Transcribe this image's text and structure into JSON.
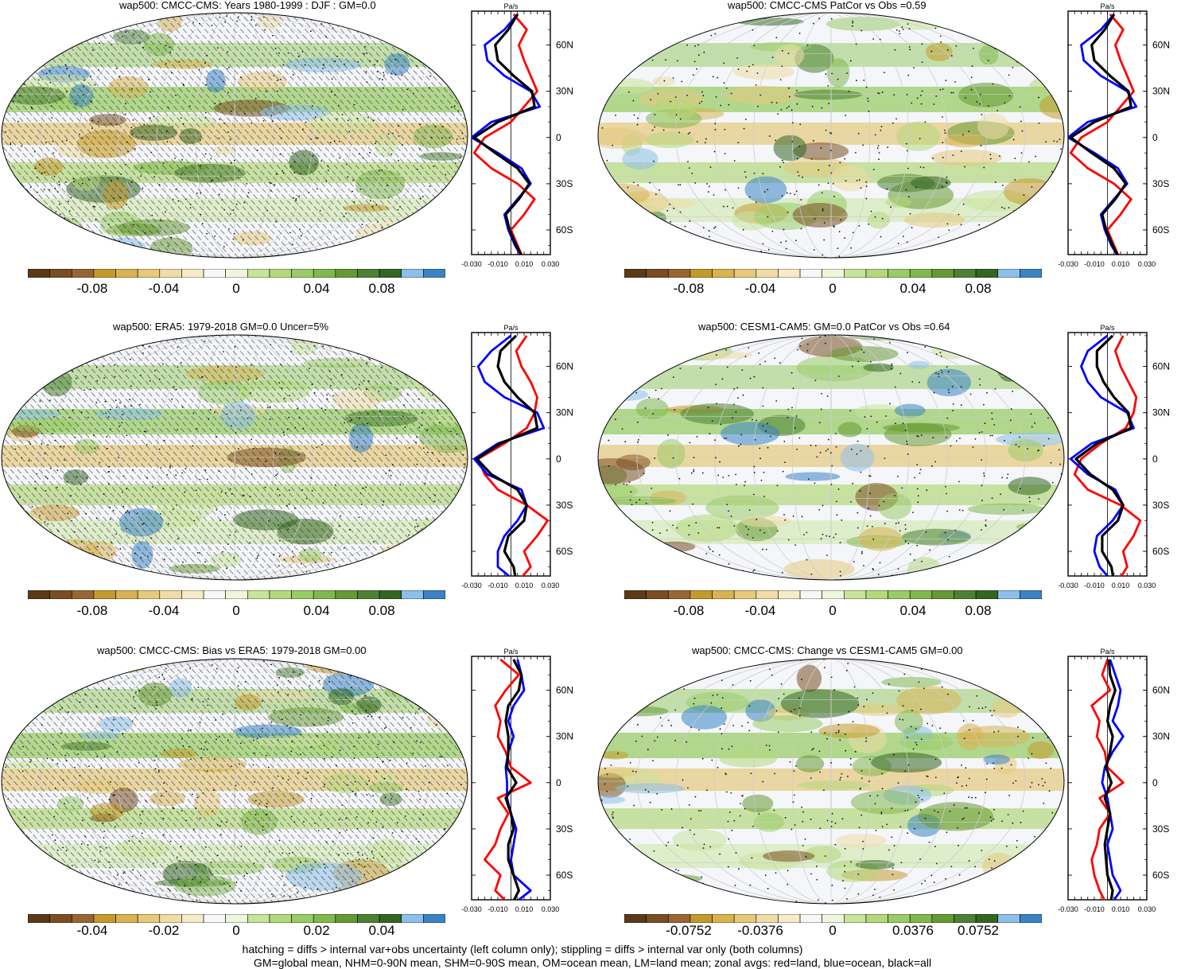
{
  "figure": {
    "footer_line1": "hatching = diffs > internal var+obs uncertainty (left column only); stippling = diffs > internal var only (both columns)",
    "footer_line2": "GM=global mean, NHM=0-90N mean, SHM=0-90S mean, OM=ocean mean, LM=land mean; zonal avgs: red=land, blue=ocean, black=all"
  },
  "colors": {
    "palette": [
      "#5c3a17",
      "#7a4e22",
      "#996633",
      "#c49a2e",
      "#d9b352",
      "#e6c97a",
      "#efdca6",
      "#f5ebc9",
      "#f7f7f7",
      "#eef6dc",
      "#c8e39a",
      "#b3d97a",
      "#99cc66",
      "#80b84d",
      "#669933",
      "#4d8033",
      "#336622",
      "#8cc0ea",
      "#3b83c4"
    ],
    "land_line": "#ff0000",
    "ocean_line": "#0000ff",
    "all_line": "#000000"
  },
  "zonal_axis": {
    "unit_label": "Pa/s",
    "tick_labels_x": [
      "-0.030",
      "-0.010",
      "0.010",
      "0.030"
    ],
    "lat_labels": [
      "60N",
      "30N",
      "0",
      "30S",
      "60S"
    ]
  },
  "panels": [
    {
      "title": "wap500: CMCC-CMS: Years 1980-1999 : DJF : GM=0.0",
      "colorbar_labels": [
        "-0.08",
        "-0.04",
        "0",
        "0.04",
        "0.08"
      ],
      "hatched": true
    },
    {
      "title": "wap500: CMCC-CMS PatCor vs Obs =0.59",
      "colorbar_labels": [
        "-0.08",
        "-0.04",
        "0",
        "0.04",
        "0.08"
      ],
      "hatched": false
    },
    {
      "title": "wap500: ERA5: 1979-2018 GM=0.0 Uncer=5%",
      "colorbar_labels": [
        "-0.08",
        "-0.04",
        "0",
        "0.04",
        "0.08"
      ],
      "hatched": true
    },
    {
      "title": "wap500: CESM1-CAM5: GM=0.0 PatCor vs Obs =0.64",
      "colorbar_labels": [
        "-0.08",
        "-0.04",
        "0",
        "0.04",
        "0.08"
      ],
      "hatched": false
    },
    {
      "title": "wap500: CMCC-CMS: Bias vs ERA5: 1979-2018 GM=0.00",
      "colorbar_labels": [
        "-0.04",
        "-0.02",
        "0",
        "0.02",
        "0.04"
      ],
      "hatched": true
    },
    {
      "title": "wap500: CMCC-CMS: Change vs CESM1-CAM5 GM=0.00",
      "colorbar_labels": [
        "-0.0752",
        "-0.0376",
        "0",
        "0.0376",
        "0.0752"
      ],
      "hatched": false
    }
  ],
  "chart_data": [
    {
      "type": "line",
      "title": "wap500: CMCC-CMS: Years 1980-1999 : DJF : GM=0.0",
      "xlabel": "Pa/s",
      "xlim": [
        -0.03,
        0.03
      ],
      "ylim": [
        -75,
        80
      ],
      "y": [
        80,
        70,
        60,
        50,
        40,
        30,
        20,
        10,
        0,
        -10,
        -20,
        -30,
        -40,
        -50,
        -60,
        -70,
        -80
      ],
      "series": [
        {
          "name": "land",
          "color": "red",
          "x": [
            0.002,
            0.012,
            0.006,
            0.01,
            0.015,
            0.02,
            0.01,
            0.0,
            -0.02,
            -0.028,
            -0.015,
            0.005,
            0.018,
            0.01,
            0.0,
            0.005,
            0.01
          ]
        },
        {
          "name": "ocean",
          "color": "blue",
          "x": [
            0.005,
            -0.005,
            -0.02,
            -0.018,
            -0.005,
            0.015,
            0.022,
            -0.015,
            -0.03,
            -0.01,
            0.008,
            0.015,
            0.005,
            -0.005,
            -0.002,
            0.003,
            0.01
          ]
        },
        {
          "name": "all",
          "color": "black",
          "x": [
            0.005,
            -0.002,
            -0.012,
            -0.01,
            0.002,
            0.016,
            0.018,
            -0.01,
            -0.028,
            -0.012,
            0.005,
            0.014,
            0.006,
            -0.004,
            -0.001,
            0.004,
            0.01
          ]
        }
      ]
    },
    {
      "type": "line",
      "title": "wap500: CMCC-CMS PatCor vs Obs =0.59",
      "xlabel": "Pa/s",
      "xlim": [
        -0.03,
        0.03
      ],
      "ylim": [
        -75,
        80
      ],
      "y": [
        80,
        70,
        60,
        50,
        40,
        30,
        20,
        10,
        0,
        -10,
        -20,
        -30,
        -40,
        -50,
        -60,
        -70,
        -80
      ],
      "series": [
        {
          "name": "land",
          "color": "red",
          "x": [
            0.002,
            0.012,
            0.006,
            0.01,
            0.015,
            0.02,
            0.01,
            0.0,
            -0.02,
            -0.028,
            -0.015,
            0.005,
            0.018,
            0.01,
            0.0,
            0.005,
            0.01
          ]
        },
        {
          "name": "ocean",
          "color": "blue",
          "x": [
            0.005,
            -0.005,
            -0.02,
            -0.018,
            -0.005,
            0.015,
            0.022,
            -0.015,
            -0.03,
            -0.01,
            0.008,
            0.015,
            0.005,
            -0.005,
            -0.002,
            0.003,
            0.01
          ]
        },
        {
          "name": "all",
          "color": "black",
          "x": [
            0.005,
            -0.002,
            -0.012,
            -0.01,
            0.002,
            0.016,
            0.018,
            -0.01,
            -0.028,
            -0.012,
            0.005,
            0.014,
            0.006,
            -0.004,
            -0.001,
            0.004,
            0.01
          ]
        }
      ]
    },
    {
      "type": "line",
      "title": "wap500: ERA5: 1979-2018 GM=0.0 Uncer=5%",
      "xlabel": "Pa/s",
      "xlim": [
        -0.03,
        0.03
      ],
      "ylim": [
        -75,
        80
      ],
      "y": [
        80,
        70,
        60,
        50,
        40,
        30,
        20,
        10,
        0,
        -10,
        -20,
        -30,
        -40,
        -50,
        -60,
        -70,
        -80
      ],
      "series": [
        {
          "name": "land",
          "color": "red",
          "x": [
            0.012,
            0.004,
            0.008,
            0.015,
            0.02,
            0.018,
            0.012,
            -0.005,
            -0.025,
            -0.02,
            -0.01,
            0.012,
            0.028,
            0.02,
            0.01,
            0.015,
            0.005
          ]
        },
        {
          "name": "ocean",
          "color": "blue",
          "x": [
            0.0,
            -0.015,
            -0.025,
            -0.02,
            -0.005,
            0.02,
            0.025,
            -0.01,
            -0.028,
            -0.018,
            0.008,
            0.012,
            0.005,
            -0.005,
            -0.01,
            -0.01,
            0.004
          ]
        },
        {
          "name": "all",
          "color": "black",
          "x": [
            0.004,
            -0.008,
            -0.01,
            -0.005,
            0.005,
            0.018,
            0.02,
            -0.008,
            -0.026,
            -0.015,
            0.005,
            0.012,
            0.01,
            -0.002,
            -0.005,
            0.002,
            0.004
          ]
        }
      ]
    },
    {
      "type": "line",
      "title": "wap500: CESM1-CAM5: GM=0.0 PatCor vs Obs =0.64",
      "xlabel": "Pa/s",
      "xlim": [
        -0.03,
        0.03
      ],
      "ylim": [
        -75,
        80
      ],
      "y": [
        80,
        70,
        60,
        50,
        40,
        30,
        20,
        10,
        0,
        -10,
        -20,
        -30,
        -40,
        -50,
        -60,
        -70,
        -80
      ],
      "series": [
        {
          "name": "land",
          "color": "red",
          "x": [
            0.012,
            0.006,
            0.01,
            0.016,
            0.022,
            0.02,
            0.014,
            -0.005,
            -0.02,
            -0.025,
            -0.015,
            0.01,
            0.025,
            0.02,
            0.012,
            0.015,
            0.008
          ]
        },
        {
          "name": "ocean",
          "color": "blue",
          "x": [
            0.0,
            -0.015,
            -0.02,
            -0.015,
            -0.005,
            0.015,
            0.02,
            -0.012,
            -0.028,
            -0.015,
            0.006,
            0.012,
            0.004,
            -0.008,
            -0.01,
            -0.006,
            0.004
          ]
        },
        {
          "name": "all",
          "color": "black",
          "x": [
            0.004,
            -0.008,
            -0.008,
            -0.003,
            0.005,
            0.016,
            0.018,
            -0.008,
            -0.024,
            -0.013,
            0.004,
            0.012,
            0.008,
            -0.004,
            -0.004,
            0.003,
            0.005
          ]
        }
      ]
    },
    {
      "type": "line",
      "title": "wap500: CMCC-CMS: Bias vs ERA5: 1979-2018 GM=0.00",
      "xlabel": "Pa/s",
      "xlim": [
        -0.03,
        0.03
      ],
      "ylim": [
        -75,
        80
      ],
      "y": [
        80,
        70,
        60,
        50,
        40,
        30,
        20,
        10,
        0,
        -10,
        -20,
        -30,
        -40,
        -50,
        -60,
        -70,
        -80
      ],
      "series": [
        {
          "name": "land",
          "color": "red",
          "x": [
            -0.008,
            0.006,
            -0.004,
            -0.012,
            -0.008,
            -0.01,
            -0.004,
            0.0,
            0.015,
            -0.01,
            -0.002,
            -0.008,
            -0.012,
            -0.02,
            -0.008,
            -0.012,
            0.0
          ]
        },
        {
          "name": "ocean",
          "color": "blue",
          "x": [
            0.005,
            0.008,
            0.01,
            0.002,
            -0.002,
            0.002,
            -0.002,
            -0.004,
            -0.003,
            -0.003,
            0.0,
            0.004,
            0.002,
            0.0,
            0.002,
            0.015,
            0.0
          ]
        },
        {
          "name": "all",
          "color": "black",
          "x": [
            0.002,
            0.008,
            0.006,
            -0.002,
            -0.004,
            -0.002,
            -0.002,
            -0.003,
            0.004,
            -0.004,
            0.0,
            0.002,
            -0.002,
            -0.002,
            0.002,
            0.006,
            0.0
          ]
        }
      ]
    },
    {
      "type": "line",
      "title": "wap500: CMCC-CMS: Change vs CESM1-CAM5 GM=0.00",
      "xlabel": "Pa/s",
      "xlim": [
        -0.03,
        0.03
      ],
      "ylim": [
        -75,
        80
      ],
      "y": [
        80,
        70,
        60,
        50,
        40,
        30,
        20,
        10,
        0,
        -10,
        -20,
        -30,
        -40,
        -50,
        -60,
        -70,
        -80
      ],
      "series": [
        {
          "name": "land",
          "color": "red",
          "x": [
            0.0,
            -0.004,
            0.002,
            -0.012,
            -0.006,
            -0.008,
            -0.002,
            0.0,
            0.012,
            -0.006,
            0.002,
            -0.006,
            -0.008,
            -0.012,
            -0.01,
            -0.006,
            0.0
          ]
        },
        {
          "name": "ocean",
          "color": "blue",
          "x": [
            0.002,
            0.006,
            0.01,
            0.008,
            0.004,
            0.012,
            0.004,
            -0.002,
            -0.004,
            0.0,
            0.002,
            0.004,
            0.0,
            0.002,
            0.004,
            0.01,
            0.002
          ]
        },
        {
          "name": "all",
          "color": "black",
          "x": [
            0.001,
            0.002,
            0.006,
            0.002,
            0.0,
            0.004,
            0.002,
            -0.001,
            0.003,
            -0.002,
            0.002,
            0.0,
            -0.002,
            -0.001,
            0.0,
            0.004,
            0.002
          ]
        }
      ]
    }
  ]
}
